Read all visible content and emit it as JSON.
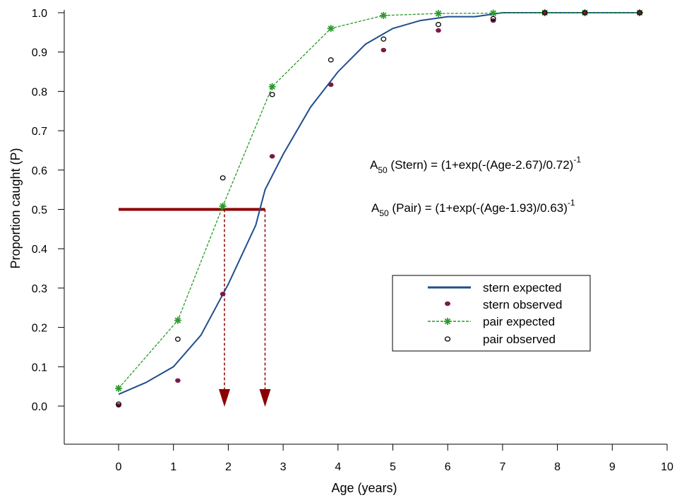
{
  "chart_data": {
    "type": "scatter",
    "title": "",
    "xlabel": "Age (years)",
    "ylabel": "Proportion caught (P)",
    "xlim": [
      -1,
      10
    ],
    "ylim": [
      -0.1,
      1.0
    ],
    "xticks": [
      0,
      1,
      2,
      3,
      4,
      5,
      6,
      7,
      8,
      9,
      10
    ],
    "xtick_labels": [
      "0",
      "1",
      "2",
      "3",
      "4",
      "5",
      "6",
      "7",
      "8",
      "9",
      "10"
    ],
    "yticks": [
      0.0,
      0.1,
      0.2,
      0.3,
      0.4,
      0.5,
      0.6,
      0.7,
      0.8,
      0.9,
      1.0
    ],
    "ytick_labels": [
      "0.0",
      "0.1",
      "0.2",
      "0.3",
      "0.4",
      "0.5",
      "0.6",
      "0.7",
      "0.8",
      "0.9",
      "1.0"
    ],
    "grid": false,
    "legend_position": "center-right",
    "series": [
      {
        "name": "stern expected",
        "kind": "line",
        "color": "#1f4e8c",
        "x": [
          0,
          0.5,
          1.0,
          1.5,
          2.0,
          2.5,
          2.67,
          3.0,
          3.5,
          4.0,
          4.5,
          5.0,
          5.5,
          6.0,
          6.5,
          7.0,
          7.5,
          8.0,
          9.0,
          9.5
        ],
        "y": [
          0.03,
          0.06,
          0.1,
          0.18,
          0.31,
          0.46,
          0.55,
          0.64,
          0.76,
          0.85,
          0.92,
          0.96,
          0.98,
          0.99,
          0.99,
          1.0,
          1.0,
          1.0,
          1.0,
          1.0
        ]
      },
      {
        "name": "stern observed",
        "kind": "points",
        "color": "#7a1a4a",
        "x": [
          0,
          1.08,
          1.9,
          2.8,
          3.87,
          4.83,
          5.83,
          6.83,
          7.77,
          8.5,
          9.5
        ],
        "y": [
          0.002,
          0.065,
          0.285,
          0.635,
          0.817,
          0.905,
          0.955,
          0.98,
          1.0,
          1.0,
          1.0
        ]
      },
      {
        "name": "pair expected",
        "kind": "line-markers",
        "color": "#2a9a2a",
        "x": [
          0,
          1.08,
          1.9,
          2.8,
          3.87,
          4.83,
          5.83,
          6.83,
          7.77,
          8.5,
          9.5
        ],
        "y": [
          0.045,
          0.218,
          0.508,
          0.812,
          0.96,
          0.993,
          0.998,
          0.999,
          1.0,
          1.0,
          1.0
        ]
      },
      {
        "name": "pair observed",
        "kind": "points",
        "color": "#000000",
        "x": [
          0,
          1.08,
          1.9,
          2.8,
          3.87,
          4.83,
          5.83,
          6.83,
          7.77,
          8.5,
          9.5
        ],
        "y": [
          0.005,
          0.17,
          0.58,
          0.792,
          0.88,
          0.933,
          0.97,
          0.985,
          1.0,
          1.0,
          1.0
        ]
      }
    ],
    "reference_lines": {
      "p50": 0.5,
      "x_start": 0,
      "pair_a50": 1.93,
      "stern_a50": 2.67,
      "color": "#8b0000"
    },
    "annotations": {
      "stern_formula": {
        "prefix": "A",
        "sub": "50",
        "middle": " (Stern) = (1+exp(-(Age-2.67)/0.72)",
        "sup": "-1"
      },
      "pair_formula": {
        "prefix": "A",
        "sub": "50",
        "middle": " (Pair) = (1+exp(-(Age-1.93)/0.63)",
        "sup": "-1"
      }
    }
  }
}
